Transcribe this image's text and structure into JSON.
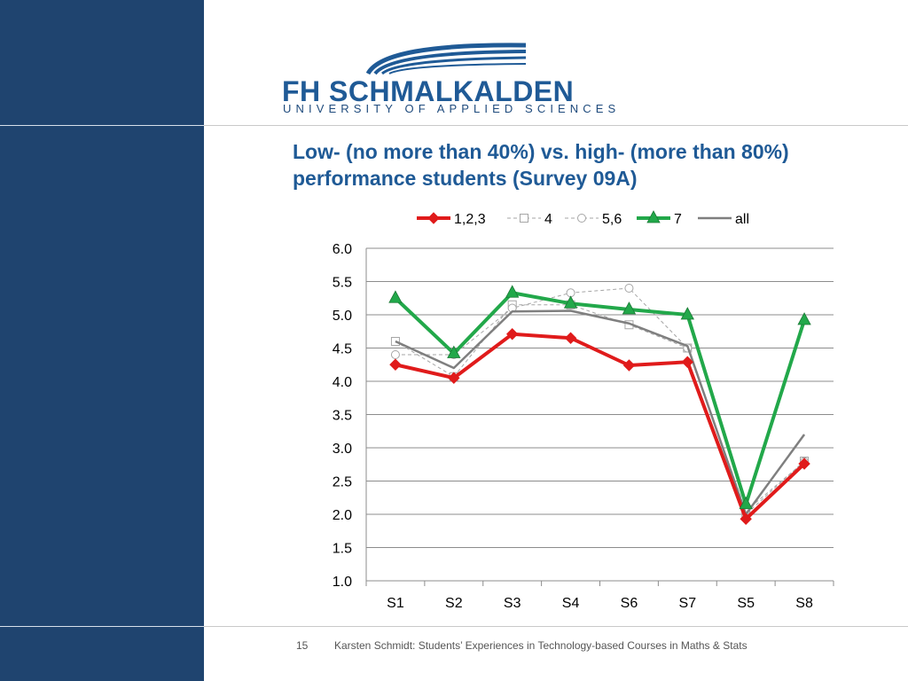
{
  "logo": {
    "name": "FH SCHMALKALDEN",
    "subtitle": "UNIVERSITY OF APPLIED SCIENCES"
  },
  "title": "Low- (no more than 40%) vs. high- (more than 80%) performance students (Survey 09A)",
  "footer": {
    "page": "15",
    "text": "Karsten Schmidt:  Students’ Experiences in Technology-based Courses in Maths & Stats"
  },
  "colors": {
    "sidebar": "#1f446f",
    "title": "#1f5a96",
    "series_123": "#e01b1b",
    "series_4": "#a6a6a6",
    "series_56": "#a6a6a6",
    "series_7": "#22a84a",
    "series_all": "#7f7f7f"
  },
  "chart_data": {
    "type": "line",
    "categories": [
      "S1",
      "S2",
      "S3",
      "S4",
      "S6",
      "S7",
      "S5",
      "S8"
    ],
    "ylim": [
      1.0,
      6.0
    ],
    "yticks": [
      "1.0",
      "1.5",
      "2.0",
      "2.5",
      "3.0",
      "3.5",
      "4.0",
      "4.5",
      "5.0",
      "5.5",
      "6.0"
    ],
    "grid": true,
    "legend": "top",
    "series": [
      {
        "name": "1,2,3",
        "marker": "diamond",
        "color": "#e01b1b",
        "style": "solid",
        "values": [
          4.25,
          4.05,
          4.71,
          4.65,
          4.24,
          4.29,
          1.93,
          2.76
        ]
      },
      {
        "name": "4",
        "marker": "square-open",
        "color": "#a6a6a6",
        "style": "dashed",
        "values": [
          4.6,
          4.07,
          5.15,
          5.15,
          4.85,
          4.5,
          2.0,
          2.8
        ]
      },
      {
        "name": "5,6",
        "marker": "circle-open",
        "color": "#a6a6a6",
        "style": "dashed",
        "values": [
          4.4,
          4.4,
          5.1,
          5.33,
          5.4,
          4.5,
          2.05,
          2.79
        ]
      },
      {
        "name": "7",
        "marker": "triangle",
        "color": "#22a84a",
        "style": "solid",
        "values": [
          5.25,
          4.42,
          5.33,
          5.17,
          5.08,
          5.0,
          2.15,
          4.92
        ]
      },
      {
        "name": "all",
        "marker": "none",
        "color": "#7f7f7f",
        "style": "solid",
        "values": [
          4.6,
          4.2,
          5.05,
          5.06,
          4.87,
          4.53,
          2.0,
          3.2
        ]
      }
    ]
  }
}
